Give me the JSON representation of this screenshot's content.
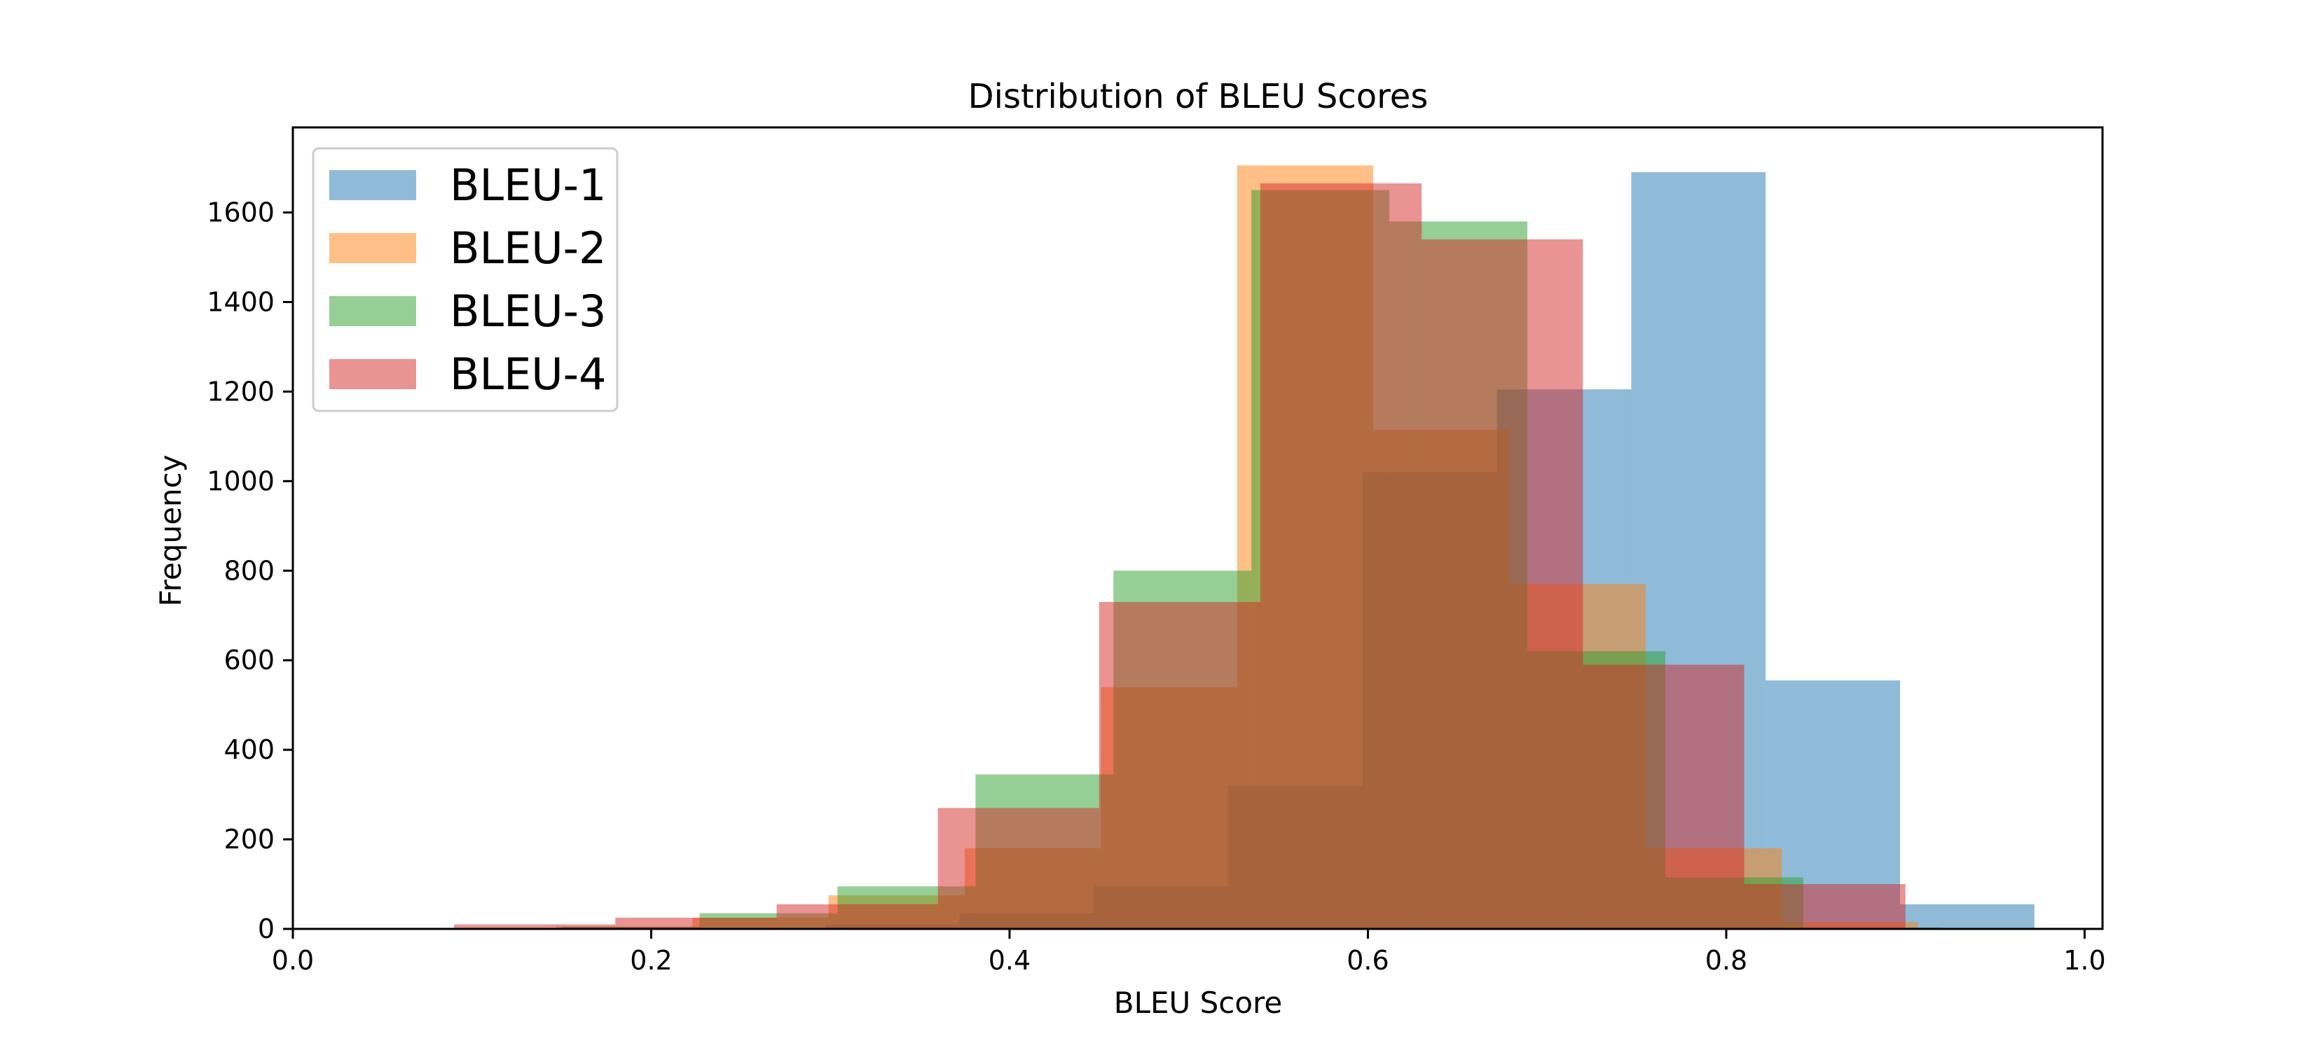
{
  "chart_data": {
    "type": "bar",
    "subtype": "overlapping-histogram",
    "title": "Distribution of BLEU Scores",
    "xlabel": "BLEU Score",
    "ylabel": "Frequency",
    "xlim": [
      0.0,
      1.01
    ],
    "ylim": [
      0,
      1790
    ],
    "xticks": [
      0.0,
      0.2,
      0.4,
      0.6,
      0.8,
      1.0
    ],
    "yticks": [
      0,
      200,
      400,
      600,
      800,
      1000,
      1200,
      1400,
      1600
    ],
    "grid": false,
    "legend_position": "top-left",
    "bar_opacity": 0.5,
    "series": [
      {
        "name": "BLEU-1",
        "color": "#1f77b4",
        "bin_edges": [
          0.222,
          0.297,
          0.372,
          0.447,
          0.522,
          0.597,
          0.672,
          0.747,
          0.822,
          0.897,
          0.972
        ],
        "counts": [
          3,
          10,
          35,
          95,
          320,
          1020,
          1205,
          1690,
          555,
          55
        ]
      },
      {
        "name": "BLEU-2",
        "color": "#ff7f0e",
        "bin_edges": [
          0.147,
          0.223,
          0.299,
          0.375,
          0.451,
          0.527,
          0.603,
          0.679,
          0.755,
          0.831,
          0.907
        ],
        "counts": [
          5,
          25,
          75,
          180,
          540,
          1705,
          1115,
          770,
          180,
          15
        ]
      },
      {
        "name": "BLEU-3",
        "color": "#2ca02c",
        "bin_edges": [
          0.15,
          0.227,
          0.304,
          0.381,
          0.458,
          0.535,
          0.612,
          0.689,
          0.766,
          0.843,
          0.92
        ],
        "counts": [
          5,
          35,
          95,
          345,
          800,
          1650,
          1580,
          620,
          115,
          3
        ]
      },
      {
        "name": "BLEU-4",
        "color": "#d62728",
        "bin_edges": [
          0.09,
          0.18,
          0.27,
          0.36,
          0.45,
          0.54,
          0.63,
          0.72,
          0.81,
          0.9
        ],
        "counts": [
          10,
          25,
          55,
          270,
          730,
          1665,
          1540,
          590,
          100
        ]
      }
    ]
  }
}
